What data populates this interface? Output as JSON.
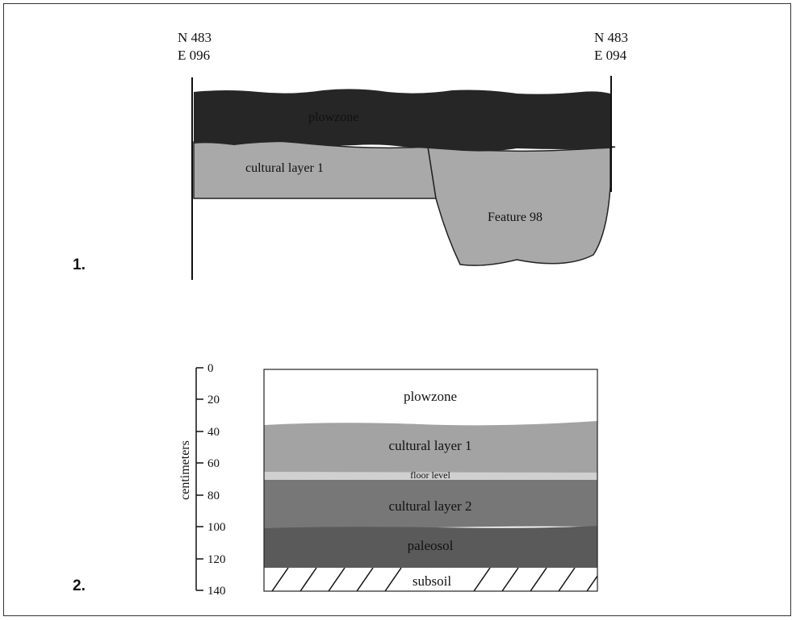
{
  "figure1": {
    "number": "1.",
    "left_coord": {
      "line1": "N 483",
      "line2": "E 096"
    },
    "right_coord": {
      "line1": "N 483",
      "line2": "E 094"
    },
    "layers": {
      "plowzone": "plowzone",
      "cultural_layer": "cultural layer 1",
      "feature": "Feature 98"
    },
    "colors": {
      "plowzone": "#262626",
      "cultural": "#a9a9a9",
      "feature": "#a9a9a9"
    }
  },
  "figure2": {
    "number": "2.",
    "axis_label": "centimeters",
    "ticks": [
      "0",
      "20",
      "40",
      "60",
      "80",
      "100",
      "120",
      "140"
    ],
    "layers": [
      {
        "label": "plowzone",
        "color": "#ffffff"
      },
      {
        "label": "cultural layer 1",
        "color": "#a3a3a3"
      },
      {
        "label": "floor level",
        "color": "#d0d0d0"
      },
      {
        "label": "cultural layer 2",
        "color": "#777777"
      },
      {
        "label": "paleosol",
        "color": "#5a5a5a"
      },
      {
        "label": "subsoil",
        "color": "#ffffff"
      }
    ]
  }
}
